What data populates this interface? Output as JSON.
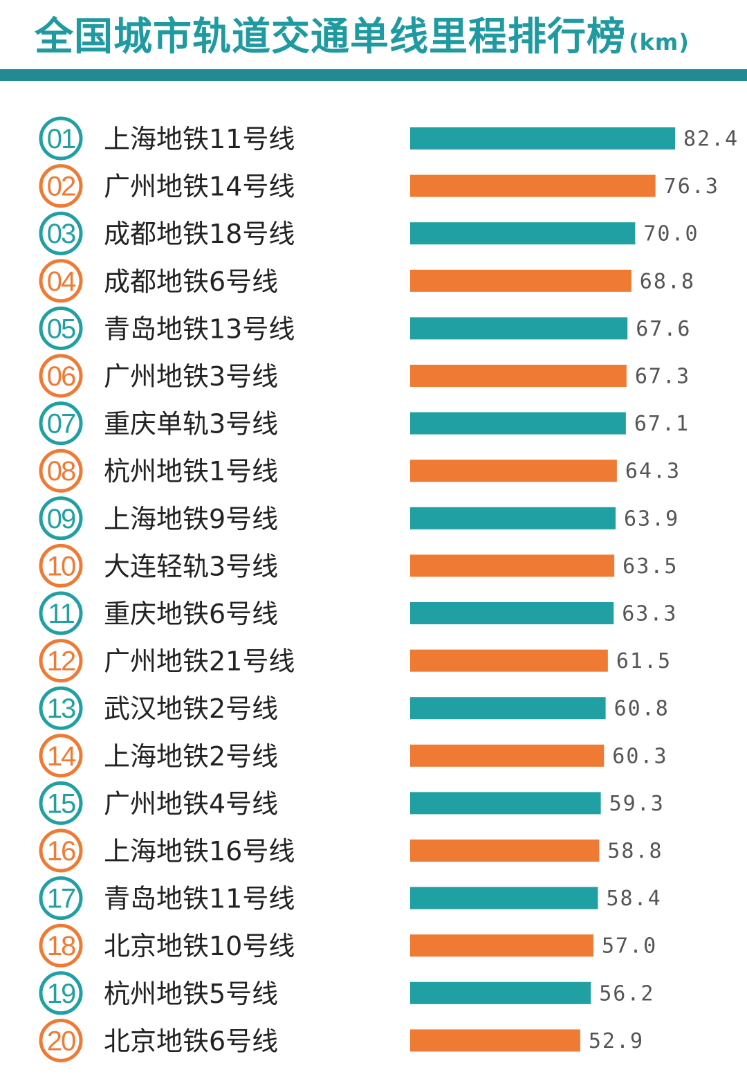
{
  "title": "全国城市轨道交通单线里程排行榜",
  "title_unit": "(km)",
  "colors": {
    "teal": "#20a0a3",
    "orange": "#ef7a33",
    "rule": "#218a93",
    "title": "#1f9aa0",
    "value": "#555555"
  },
  "chart_data": {
    "type": "bar",
    "orientation": "horizontal",
    "title": "全国城市轨道交通单线里程排行榜",
    "unit": "km",
    "ranks": [
      "01",
      "02",
      "03",
      "04",
      "05",
      "06",
      "07",
      "08",
      "09",
      "10",
      "11",
      "12",
      "13",
      "14",
      "15",
      "16",
      "17",
      "18",
      "19",
      "20"
    ],
    "categories": [
      "上海地铁11号线",
      "广州地铁14号线",
      "成都地铁18号线",
      "成都地铁6号线",
      "青岛地铁13号线",
      "广州地铁3号线",
      "重庆单轨3号线",
      "杭州地铁1号线",
      "上海地铁9号线",
      "大连轻轨3号线",
      "重庆地铁6号线",
      "广州地铁21号线",
      "武汉地铁2号线",
      "上海地铁2号线",
      "广州地铁4号线",
      "上海地铁16号线",
      "青岛地铁11号线",
      "北京地铁10号线",
      "杭州地铁5号线",
      "北京地铁6号线"
    ],
    "values": [
      82.4,
      76.3,
      70.0,
      68.8,
      67.6,
      67.3,
      67.1,
      64.3,
      63.9,
      63.5,
      63.3,
      61.5,
      60.8,
      60.3,
      59.3,
      58.8,
      58.4,
      57.0,
      56.2,
      52.9
    ],
    "value_labels": [
      "82.4",
      "76.3",
      "70.0",
      "68.8",
      "67.6",
      "67.3",
      "67.1",
      "64.3",
      "63.9",
      "63.5",
      "63.3",
      "61.5",
      "60.8",
      "60.3",
      "59.3",
      "58.8",
      "58.4",
      "57.0",
      "56.2",
      "52.9"
    ],
    "alternating_colors": [
      "#20a0a3",
      "#ef7a33"
    ],
    "grid": false,
    "legend": "none"
  }
}
